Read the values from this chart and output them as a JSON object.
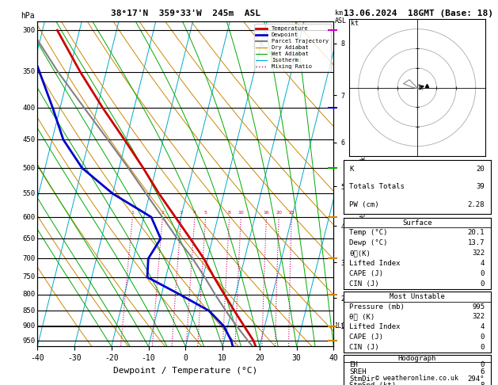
{
  "title_left": "38°17'N  359°33'W  245m  ASL",
  "title_right": "13.06.2024  18GMT (Base: 18)",
  "xlabel": "Dewpoint / Temperature (°C)",
  "xlim": [
    -40,
    40
  ],
  "ylim_p": [
    970,
    290
  ],
  "temp_color": "#cc0000",
  "dewp_color": "#0000cc",
  "parcel_color": "#808080",
  "dry_adiabat_color": "#cc8800",
  "wet_adiabat_color": "#00aa00",
  "isotherm_color": "#00aacc",
  "mixing_ratio_color": "#cc0066",
  "skew_factor": 22,
  "pressure_levels": [
    300,
    350,
    400,
    450,
    500,
    550,
    600,
    650,
    700,
    750,
    800,
    850,
    900,
    950
  ],
  "temperature_profile": {
    "pressure": [
      995,
      950,
      900,
      850,
      800,
      750,
      700,
      650,
      600,
      550,
      500,
      450,
      400,
      350,
      300
    ],
    "temp": [
      20.1,
      18.0,
      14.5,
      10.8,
      7.0,
      3.0,
      -1.0,
      -6.0,
      -11.5,
      -17.5,
      -23.5,
      -30.5,
      -38.5,
      -47.0,
      -56.0
    ]
  },
  "dewpoint_profile": {
    "pressure": [
      995,
      950,
      900,
      850,
      800,
      750,
      700,
      650,
      600,
      550,
      500,
      450,
      400,
      350,
      300
    ],
    "temp": [
      13.7,
      12.0,
      9.0,
      4.0,
      -5.0,
      -15.0,
      -16.0,
      -14.0,
      -18.0,
      -30.0,
      -40.0,
      -47.0,
      -52.0,
      -58.0,
      -65.0
    ]
  },
  "parcel_profile": {
    "pressure": [
      995,
      950,
      900,
      875,
      850,
      800,
      750,
      700,
      650,
      600,
      550,
      500,
      450,
      400,
      350,
      300
    ],
    "temp": [
      20.1,
      16.5,
      12.5,
      10.5,
      8.5,
      4.5,
      0.5,
      -4.0,
      -9.5,
      -15.0,
      -21.0,
      -27.5,
      -35.0,
      -43.5,
      -53.0,
      -63.0
    ]
  },
  "lcl_pressure": 900,
  "mixing_ratio_lines": [
    1,
    2,
    3,
    4,
    5,
    8,
    10,
    16,
    20,
    25
  ],
  "km_ticks": [
    1,
    2,
    3,
    4,
    5,
    6,
    7,
    8
  ],
  "km_pressures": [
    900,
    810,
    710,
    620,
    535,
    455,
    382,
    315
  ],
  "legend_items": [
    {
      "label": "Temperature",
      "color": "#cc0000",
      "ls": "-",
      "lw": 2.0
    },
    {
      "label": "Dewpoint",
      "color": "#0000cc",
      "ls": "-",
      "lw": 2.0
    },
    {
      "label": "Parcel Trajectory",
      "color": "#808080",
      "ls": "-",
      "lw": 1.5
    },
    {
      "label": "Dry Adiabat",
      "color": "#cc8800",
      "ls": "-",
      "lw": 0.8
    },
    {
      "label": "Wet Adiabat",
      "color": "#00aa00",
      "ls": "-",
      "lw": 0.8
    },
    {
      "label": "Isotherm",
      "color": "#00aacc",
      "ls": "-",
      "lw": 0.8
    },
    {
      "label": "Mixing Ratio",
      "color": "#cc0066",
      "ls": ":",
      "lw": 1.0
    }
  ],
  "copyright": "© weatheronline.co.uk"
}
